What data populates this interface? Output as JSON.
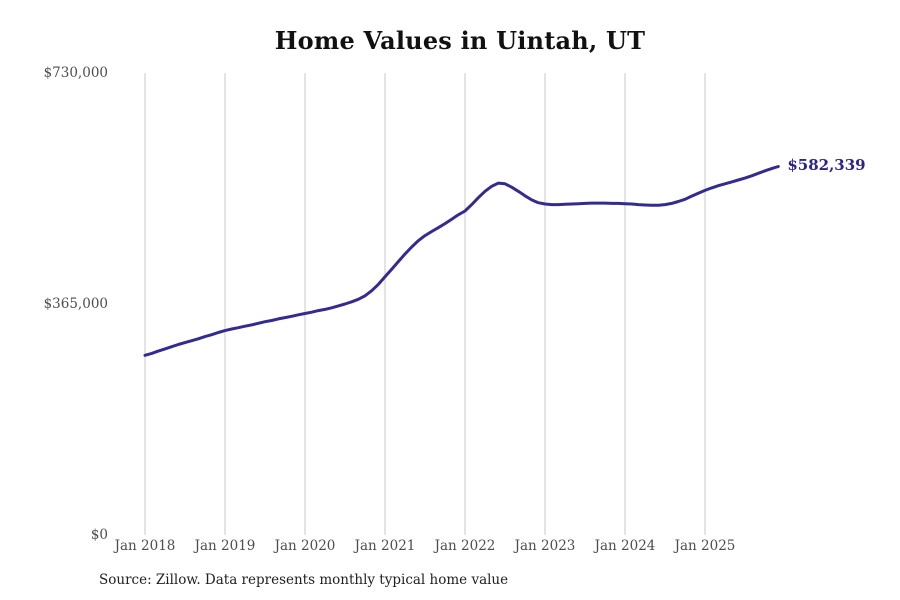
{
  "colors": {
    "background": "#ffffff",
    "line": "#332b90",
    "end_label": "#2b2489",
    "grid": "#c9c9c9",
    "title": "#111111",
    "tick": "#4d4d4d",
    "source": "#1f1f1f"
  },
  "chart_data": {
    "type": "line",
    "title": "Home Values in Uintah, UT",
    "source": "Source: Zillow. Data represents monthly typical home value",
    "end_label": "$582,339",
    "xlabel": "",
    "ylabel": "",
    "ylim": [
      0,
      730000
    ],
    "frequency": "monthly",
    "x_start": "2018-01",
    "x_end": "2025-12",
    "grid": "vertical-only",
    "x_tick_labels": [
      "Jan 2018",
      "Jan 2019",
      "Jan 2020",
      "Jan 2021",
      "Jan 2022",
      "Jan 2023",
      "Jan 2024",
      "Jan 2025"
    ],
    "y_ticks": [
      {
        "label": "$730,000",
        "value": 730000
      },
      {
        "label": "$365,000",
        "value": 365000
      },
      {
        "label": "$0",
        "value": 0
      }
    ],
    "series_name": "Typical home value",
    "values": [
      284000,
      287000,
      290500,
      294000,
      297500,
      301000,
      304000,
      307000,
      310000,
      313500,
      316500,
      320000,
      323000,
      325500,
      327500,
      330000,
      332000,
      334500,
      337000,
      339000,
      341500,
      343500,
      345500,
      348000,
      350000,
      352000,
      354500,
      356500,
      359000,
      362000,
      365000,
      368500,
      372500,
      378000,
      386000,
      396000,
      408000,
      420000,
      432000,
      444000,
      455000,
      465000,
      473000,
      479500,
      485500,
      492000,
      499000,
      506000,
      512000,
      522000,
      533000,
      543000,
      551000,
      556000,
      555000,
      549500,
      543000,
      536000,
      529500,
      525000,
      523000,
      522000,
      522000,
      522500,
      523000,
      523500,
      524000,
      524500,
      524500,
      524500,
      524000,
      524000,
      523500,
      523000,
      522000,
      521500,
      521000,
      521000,
      522000,
      524000,
      527000,
      530500,
      535500,
      540000,
      544500,
      548500,
      552000,
      555000,
      558000,
      561000,
      564000,
      567500,
      571500,
      575500,
      579000,
      582339
    ]
  }
}
